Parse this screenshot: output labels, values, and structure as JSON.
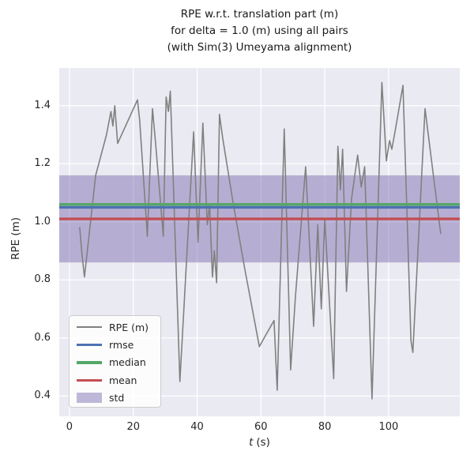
{
  "title": {
    "line1": "RPE w.r.t. translation part (m)",
    "line2": "for delta = 1.0 (m) using all pairs",
    "line3": "(with Sim(3) Umeyama alignment)"
  },
  "axes": {
    "xlabel_t": "t",
    "xlabel_unit": "(s)",
    "ylabel": "RPE (m)",
    "x_tick_labels": [
      "0",
      "20",
      "40",
      "60",
      "80",
      "100"
    ],
    "y_tick_labels": [
      "0.4",
      "0.6",
      "0.8",
      "1.0",
      "1.2",
      "1.4"
    ]
  },
  "legend": {
    "items": [
      {
        "label": "RPE (m)",
        "swatch": "line",
        "color": "#808080"
      },
      {
        "label": "rmse",
        "swatch": "thickline",
        "color": "#4c72b0"
      },
      {
        "label": "median",
        "swatch": "thickline",
        "color": "#55a868"
      },
      {
        "label": "mean",
        "swatch": "thickline",
        "color": "#c44e52"
      },
      {
        "label": "std",
        "swatch": "patch",
        "color": "#8172b2"
      }
    ]
  },
  "chart_data": {
    "type": "line",
    "title": "RPE w.r.t. translation part (m) for delta = 1.0 (m) using all pairs (with Sim(3) Umeyama alignment)",
    "xlabel": "t (s)",
    "ylabel": "RPE (m)",
    "xlim": [
      -3.2,
      122.3
    ],
    "ylim": [
      0.33,
      1.53
    ],
    "x_ticks": [
      0,
      20,
      40,
      60,
      80,
      100
    ],
    "y_ticks": [
      0.4,
      0.6,
      0.8,
      1.0,
      1.2,
      1.4
    ],
    "grid": true,
    "legend_position": "lower left",
    "plot_bg": "#eaeaf2",
    "grid_color": "#ffffff",
    "series": [
      {
        "name": "RPE (m)",
        "kind": "line",
        "color": "#808080",
        "x": [
          3.2,
          3.9,
          4.7,
          8.2,
          11.6,
          13.0,
          13.6,
          14.2,
          15.1,
          21.3,
          22.0,
          24.4,
          26.0,
          27.0,
          29.4,
          30.3,
          31.0,
          31.6,
          34.6,
          38.9,
          40.3,
          41.8,
          43.2,
          43.9,
          44.8,
          45.4,
          46.1,
          47.0,
          48.0,
          51.2,
          54.9,
          59.5,
          61.5,
          64.1,
          65.1,
          67.3,
          69.3,
          70.8,
          74.0,
          76.5,
          77.8,
          78.9,
          80.0,
          82.8,
          84.1,
          84.9,
          85.6,
          86.8,
          88.4,
          90.3,
          91.4,
          92.5,
          94.8,
          97.9,
          99.3,
          100.3,
          101.0,
          102.0,
          104.5,
          107.0,
          107.6,
          111.4,
          116.3
        ],
        "y": [
          0.98,
          0.89,
          0.81,
          1.16,
          1.3,
          1.38,
          1.33,
          1.4,
          1.27,
          1.42,
          1.35,
          0.95,
          1.39,
          1.27,
          0.95,
          1.43,
          1.38,
          1.45,
          0.45,
          1.31,
          0.93,
          1.34,
          0.99,
          1.06,
          0.81,
          0.9,
          0.79,
          1.37,
          1.29,
          1.07,
          0.84,
          0.57,
          0.61,
          0.66,
          0.42,
          1.32,
          0.49,
          0.74,
          1.19,
          0.64,
          0.99,
          0.7,
          1.01,
          0.46,
          1.26,
          1.11,
          1.25,
          0.76,
          1.08,
          1.23,
          1.12,
          1.19,
          0.39,
          1.48,
          1.21,
          1.28,
          1.25,
          1.31,
          1.47,
          0.59,
          0.55,
          1.39,
          0.96
        ]
      },
      {
        "name": "rmse",
        "kind": "hline",
        "color": "#4c72b0",
        "value": 1.05
      },
      {
        "name": "median",
        "kind": "hline",
        "color": "#55a868",
        "value": 1.06
      },
      {
        "name": "mean",
        "kind": "hline",
        "color": "#c44e52",
        "value": 1.01
      },
      {
        "name": "std",
        "kind": "band",
        "color": "#8172b2",
        "center": 1.01,
        "halfwidth": 0.15,
        "range": [
          0.86,
          1.16
        ]
      }
    ]
  }
}
